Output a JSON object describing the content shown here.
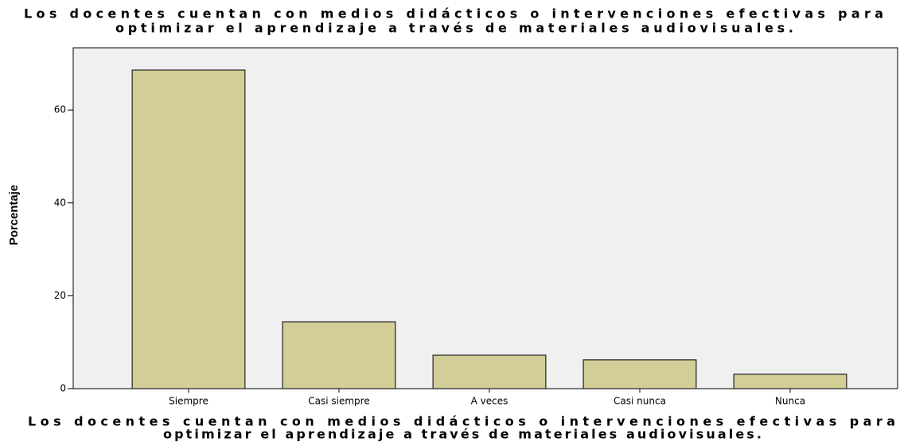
{
  "chart_data": {
    "type": "bar",
    "title": [
      "Los docentes cuentan con medios didácticos o intervenciones efectivas para",
      "optimizar el aprendizaje a través de materiales audiovisuales."
    ],
    "xlabel": [
      "Los docentes cuentan con medios didácticos o intervenciones efectivas para",
      "optimizar el aprendizaje a través de materiales audiovisuales."
    ],
    "ylabel": "Porcentaje",
    "categories": [
      "Siempre",
      "Casi siempre",
      "A veces",
      "Casi nunca",
      "Nunca"
    ],
    "values": [
      68.6,
      14.4,
      7.2,
      6.2,
      3.1
    ],
    "color": "#d3ce97",
    "ylim": [
      0,
      73.4
    ],
    "yticks": [
      0,
      20,
      40,
      60
    ],
    "grid": false
  }
}
